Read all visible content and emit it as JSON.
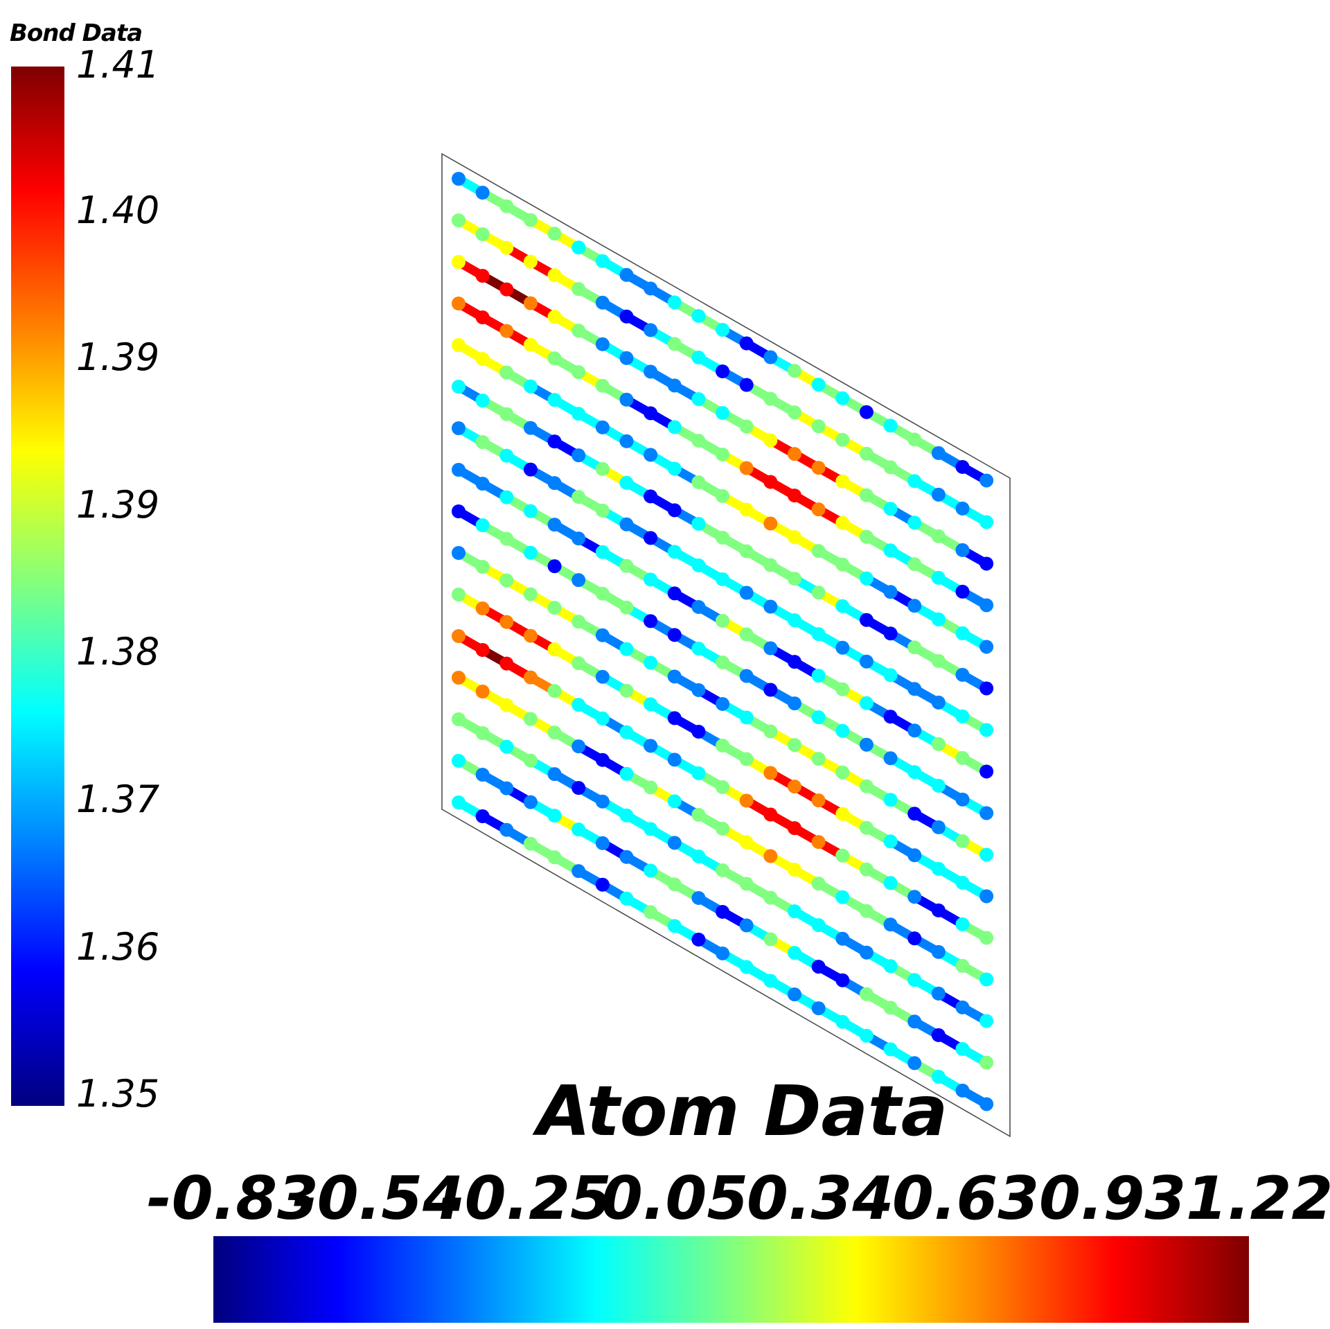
{
  "bond_legend": {
    "title": "Bond Data",
    "ticks": [
      "1.41",
      "1.40",
      "1.39",
      "1.39",
      "1.38",
      "1.37",
      "1.36",
      "1.35"
    ]
  },
  "atom_legend": {
    "title": "Atom Data",
    "ticks": [
      "-0.83",
      "-0.54",
      "-0.25",
      "0.05",
      "0.34",
      "0.63",
      "0.93",
      "1.22"
    ]
  },
  "colormap": [
    "#00007f",
    "#0000ff",
    "#0080ff",
    "#00ffff",
    "#80ff80",
    "#ffff00",
    "#ff8000",
    "#ff0000",
    "#7f0000"
  ]
}
